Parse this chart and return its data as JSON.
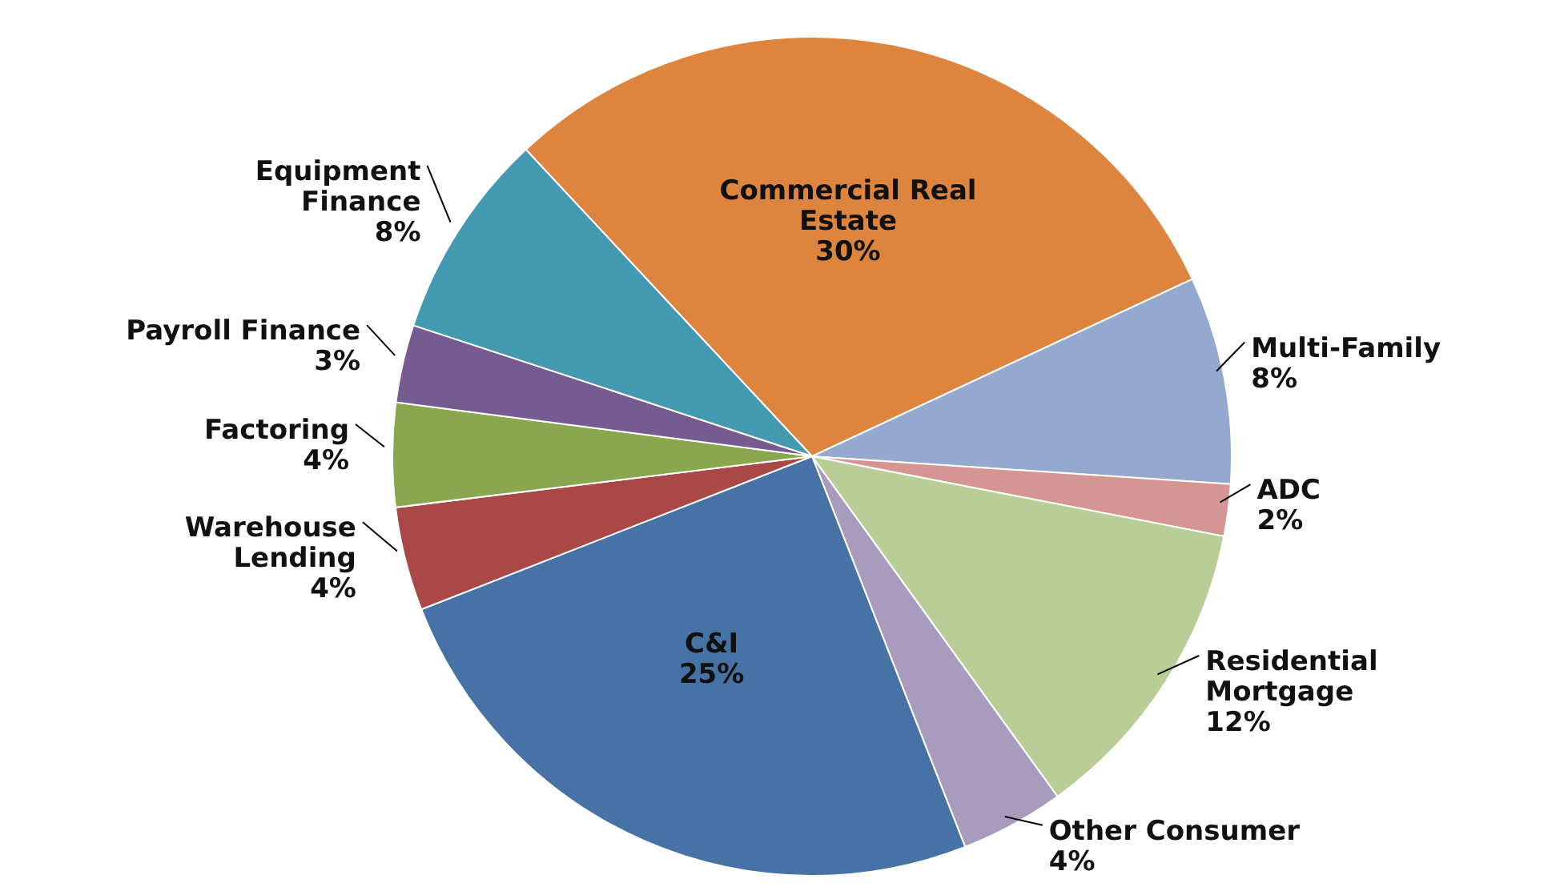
{
  "chart_data": {
    "type": "pie",
    "categories": [
      "Commercial Real Estate",
      "Multi-Family",
      "ADC",
      "Residential Mortgage",
      "Other Consumer",
      "C&I",
      "Warehouse Lending",
      "Factoring",
      "Payroll Finance",
      "Equipment Finance"
    ],
    "values": [
      30,
      8,
      2,
      12,
      4,
      25,
      4,
      4,
      3,
      8
    ],
    "value_labels": [
      "30%",
      "8%",
      "2%",
      "12%",
      "4%",
      "25%",
      "4%",
      "4%",
      "3%",
      "8%"
    ],
    "colors": [
      "#dd843f",
      "#95a9cf",
      "#d59593",
      "#b9cd96",
      "#a99bbd",
      "#4772a6",
      "#a94846",
      "#8aa64f",
      "#765b91",
      "#4299b0"
    ],
    "legend": false
  }
}
